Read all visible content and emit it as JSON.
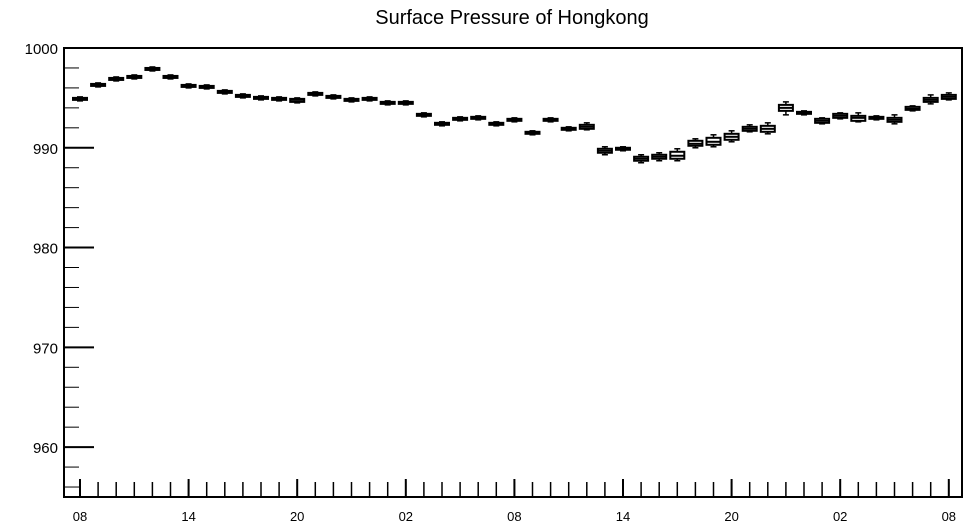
{
  "chart_data": {
    "type": "box",
    "title": "Surface Pressure of Hongkong",
    "xlabel": "",
    "ylabel": "",
    "ylim": [
      955,
      1000
    ],
    "y_ticks": [
      960,
      970,
      980,
      990,
      1000
    ],
    "x_ticks": [
      {
        "hour_index": 0,
        "label": "08"
      },
      {
        "hour_index": 6,
        "label": "14"
      },
      {
        "hour_index": 12,
        "label": "20"
      },
      {
        "hour_index": 18,
        "label": "02"
      },
      {
        "hour_index": 24,
        "label": "08"
      },
      {
        "hour_index": 30,
        "label": "14"
      },
      {
        "hour_index": 36,
        "label": "20"
      },
      {
        "hour_index": 42,
        "label": "02"
      },
      {
        "hour_index": 48,
        "label": "08"
      }
    ],
    "hours": [
      0,
      1,
      2,
      3,
      4,
      5,
      6,
      7,
      8,
      9,
      10,
      11,
      12,
      13,
      14,
      15,
      16,
      17,
      18,
      19,
      20,
      21,
      22,
      23,
      24,
      25,
      26,
      27,
      28,
      29,
      30,
      31,
      32,
      33,
      34,
      35,
      36,
      37,
      38,
      39,
      40,
      41,
      42,
      43,
      44,
      45,
      46,
      47,
      48
    ],
    "median": [
      994.9,
      996.3,
      996.9,
      997.1,
      997.9,
      997.1,
      996.2,
      996.1,
      995.6,
      995.2,
      995.0,
      994.9,
      994.8,
      995.4,
      995.1,
      994.8,
      994.9,
      994.5,
      994.5,
      993.3,
      992.4,
      992.9,
      993.0,
      992.4,
      992.8,
      991.5,
      992.8,
      991.9,
      992.1,
      989.7,
      989.9,
      988.9,
      989.1,
      989.2,
      990.4,
      990.6,
      991.1,
      991.9,
      991.9,
      994.0,
      993.5,
      992.7,
      993.2,
      993.0,
      993.0,
      992.8,
      993.9,
      994.8,
      995.1
    ],
    "q1": [
      994.8,
      996.2,
      996.8,
      997.0,
      997.8,
      997.0,
      996.1,
      996.0,
      995.5,
      995.1,
      994.9,
      994.8,
      994.6,
      995.3,
      995.0,
      994.7,
      994.8,
      994.4,
      994.4,
      993.2,
      992.3,
      992.8,
      992.9,
      992.3,
      992.7,
      991.4,
      992.7,
      991.8,
      991.9,
      989.5,
      989.8,
      988.7,
      988.9,
      988.9,
      990.2,
      990.3,
      990.8,
      991.7,
      991.6,
      993.7,
      993.4,
      992.5,
      993.0,
      992.7,
      992.9,
      992.6,
      993.8,
      994.6,
      994.9
    ],
    "q3": [
      995.0,
      996.4,
      997.0,
      997.2,
      998.0,
      997.2,
      996.3,
      996.2,
      995.7,
      995.3,
      995.1,
      995.0,
      994.9,
      995.5,
      995.2,
      994.9,
      995.0,
      994.6,
      994.6,
      993.4,
      992.5,
      993.0,
      993.1,
      992.5,
      992.9,
      991.6,
      992.9,
      992.0,
      992.3,
      989.9,
      990.0,
      989.1,
      989.3,
      989.6,
      990.7,
      991.0,
      991.4,
      992.1,
      992.2,
      994.3,
      993.6,
      992.9,
      993.4,
      993.2,
      993.1,
      993.0,
      994.1,
      995.0,
      995.3
    ],
    "min": [
      994.7,
      996.1,
      996.7,
      996.9,
      997.7,
      996.9,
      996.0,
      995.9,
      995.4,
      995.0,
      994.8,
      994.7,
      994.5,
      995.2,
      994.9,
      994.6,
      994.7,
      994.3,
      994.3,
      993.1,
      992.2,
      992.7,
      992.8,
      992.2,
      992.6,
      991.3,
      992.6,
      991.7,
      991.8,
      989.3,
      989.7,
      988.5,
      988.7,
      988.7,
      990.0,
      990.1,
      990.6,
      991.6,
      991.4,
      993.3,
      993.3,
      992.4,
      992.9,
      992.6,
      992.8,
      992.4,
      993.7,
      994.4,
      994.8
    ],
    "max": [
      995.1,
      996.5,
      997.1,
      997.3,
      998.1,
      997.3,
      996.4,
      996.3,
      995.8,
      995.4,
      995.2,
      995.1,
      995.0,
      995.6,
      995.3,
      995.0,
      995.1,
      994.7,
      994.7,
      993.5,
      992.6,
      993.1,
      993.2,
      992.6,
      993.0,
      991.7,
      993.0,
      992.1,
      992.5,
      990.1,
      990.1,
      989.3,
      989.5,
      989.9,
      990.9,
      991.3,
      991.7,
      992.3,
      992.5,
      994.6,
      993.7,
      993.0,
      993.5,
      993.5,
      993.2,
      993.3,
      994.2,
      995.3,
      995.5
    ],
    "grid": false,
    "legend": "none"
  }
}
